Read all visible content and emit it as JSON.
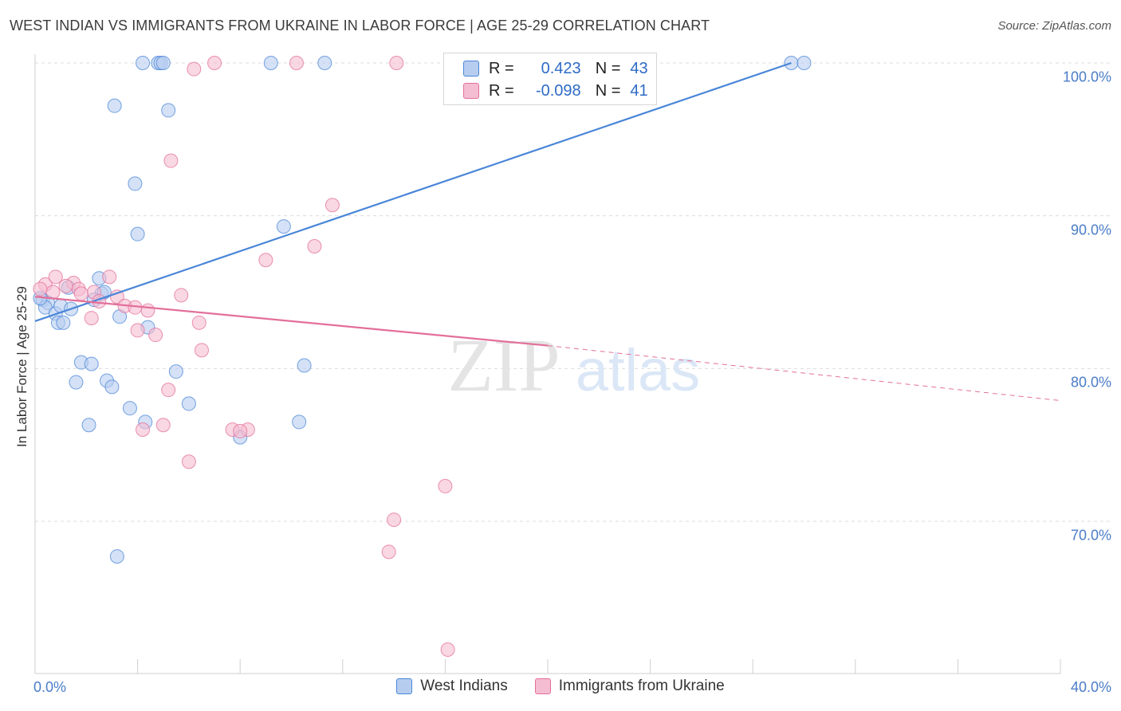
{
  "chart_data": {
    "type": "scatter",
    "title": "WEST INDIAN VS IMMIGRANTS FROM UKRAINE IN LABOR FORCE | AGE 25-29 CORRELATION CHART",
    "source": "Source: ZipAtlas.com",
    "ylabel": "In Labor Force | Age 25-29",
    "xlabel": "",
    "xlim": [
      0,
      40
    ],
    "ylim": [
      61,
      101.5
    ],
    "y_ticks": [
      {
        "value": 100,
        "label": "100.0%"
      },
      {
        "value": 90,
        "label": "90.0%"
      },
      {
        "value": 80,
        "label": "80.0%"
      },
      {
        "value": 70,
        "label": "70.0%"
      }
    ],
    "x_tick_labels": {
      "min": "0.0%",
      "max": "40.0%"
    },
    "grid": true,
    "legend_placement": "top-center",
    "watermark": {
      "zip": "ZIP",
      "atlas": "atlas"
    },
    "series": [
      {
        "name": "West Indians",
        "color": "#4a86d8",
        "fill": "#b7cdf0",
        "stat": {
          "r_label": "R =",
          "r": "0.423",
          "n_label": "N =",
          "n": "43"
        },
        "trend": {
          "x0": 0,
          "y0": 83.1,
          "x1": 29.5,
          "y1": 100.0
        },
        "points": [
          [
            0.3,
            84.5
          ],
          [
            0.5,
            84.3
          ],
          [
            0.4,
            84.0
          ],
          [
            0.8,
            83.6
          ],
          [
            1.0,
            84.1
          ],
          [
            1.4,
            83.9
          ],
          [
            0.9,
            83.0
          ],
          [
            1.1,
            83.0
          ],
          [
            1.3,
            85.3
          ],
          [
            2.5,
            85.9
          ],
          [
            2.6,
            84.9
          ],
          [
            2.3,
            84.5
          ],
          [
            3.3,
            83.4
          ],
          [
            4.4,
            82.7
          ],
          [
            3.1,
            97.2
          ],
          [
            5.2,
            96.9
          ],
          [
            3.9,
            92.1
          ],
          [
            4.0,
            88.8
          ],
          [
            4.2,
            100.0
          ],
          [
            4.8,
            100.0
          ],
          [
            4.9,
            100.0
          ],
          [
            5.0,
            100.0
          ],
          [
            9.2,
            100.0
          ],
          [
            11.3,
            100.0
          ],
          [
            9.7,
            89.3
          ],
          [
            29.5,
            100.0
          ],
          [
            30.0,
            100.0
          ],
          [
            1.8,
            80.4
          ],
          [
            2.2,
            80.3
          ],
          [
            1.6,
            79.1
          ],
          [
            2.8,
            79.2
          ],
          [
            3.0,
            78.8
          ],
          [
            5.5,
            79.8
          ],
          [
            3.7,
            77.4
          ],
          [
            6.0,
            77.7
          ],
          [
            4.3,
            76.5
          ],
          [
            2.1,
            76.3
          ],
          [
            10.3,
            76.5
          ],
          [
            8.0,
            75.5
          ],
          [
            10.5,
            80.2
          ],
          [
            3.2,
            67.7
          ],
          [
            0.2,
            84.6
          ],
          [
            2.7,
            85.0
          ]
        ]
      },
      {
        "name": "Immigrants from Ukraine",
        "color": "#e36f9a",
        "fill": "#f5bdd1",
        "stat": {
          "r_label": "R =",
          "r": "-0.098",
          "n_label": "N =",
          "n": "41"
        },
        "trend": {
          "x0": 0,
          "y0": 84.7,
          "x1": 20.0,
          "y1": 81.5
        },
        "trend_dashed": {
          "x0": 20.0,
          "y0": 81.5,
          "x1": 40.0,
          "y1": 77.9
        },
        "points": [
          [
            0.4,
            85.5
          ],
          [
            0.8,
            86.0
          ],
          [
            1.5,
            85.6
          ],
          [
            1.7,
            85.2
          ],
          [
            2.3,
            85.0
          ],
          [
            2.9,
            86.0
          ],
          [
            3.2,
            84.7
          ],
          [
            2.5,
            84.4
          ],
          [
            1.8,
            84.9
          ],
          [
            0.7,
            85.0
          ],
          [
            3.5,
            84.1
          ],
          [
            4.4,
            83.8
          ],
          [
            4.0,
            82.5
          ],
          [
            4.7,
            82.2
          ],
          [
            2.2,
            83.3
          ],
          [
            5.7,
            84.8
          ],
          [
            6.4,
            83.0
          ],
          [
            6.5,
            81.2
          ],
          [
            5.2,
            78.6
          ],
          [
            5.0,
            76.3
          ],
          [
            4.2,
            76.0
          ],
          [
            7.7,
            76.0
          ],
          [
            8.3,
            76.0
          ],
          [
            8.0,
            75.9
          ],
          [
            6.0,
            73.9
          ],
          [
            16.0,
            72.3
          ],
          [
            14.0,
            70.1
          ],
          [
            13.8,
            68.0
          ],
          [
            16.1,
            61.6
          ],
          [
            9.0,
            87.1
          ],
          [
            10.9,
            88.0
          ],
          [
            11.6,
            90.7
          ],
          [
            5.3,
            93.6
          ],
          [
            6.2,
            99.6
          ],
          [
            7.0,
            100.0
          ],
          [
            10.2,
            100.0
          ],
          [
            14.1,
            100.0
          ],
          [
            19.8,
            100.0
          ],
          [
            3.9,
            84.0
          ],
          [
            1.2,
            85.4
          ],
          [
            0.2,
            85.2
          ]
        ]
      }
    ]
  }
}
